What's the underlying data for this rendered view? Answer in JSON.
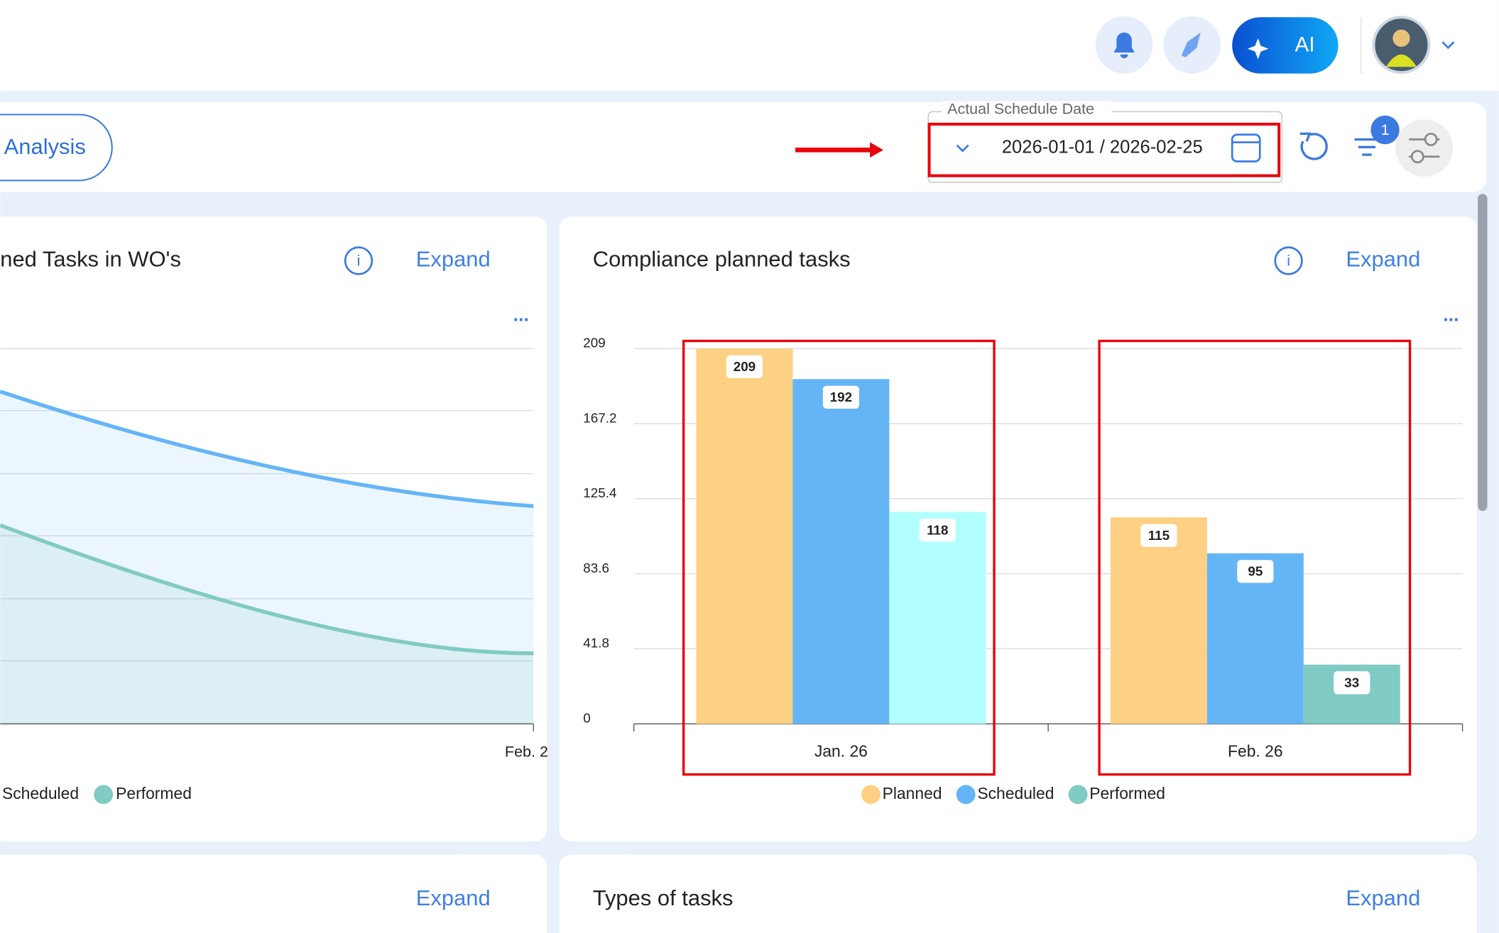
{
  "header": {
    "ai_button": "AI"
  },
  "toolbar": {
    "tab": "Analysis",
    "date_field": {
      "label": "Actual Schedule Date",
      "value": "2026-01-01 / 2026-02-25"
    },
    "filter_badge": "1"
  },
  "left_card": {
    "title": "ned Tasks in WO's",
    "expand": "Expand",
    "x_label": "Feb. 2",
    "legend": [
      "Scheduled",
      "Performed"
    ]
  },
  "compliance_card": {
    "expand": "Expand"
  },
  "chart_data": {
    "type": "bar",
    "title": "Compliance planned tasks",
    "categories": [
      "Jan. 26",
      "Feb. 26"
    ],
    "series": [
      {
        "name": "Planned",
        "color": "#fdd083",
        "values": [
          209,
          115
        ]
      },
      {
        "name": "Scheduled",
        "color": "#64b5f6",
        "values": [
          192,
          95
        ]
      },
      {
        "name": "Performed",
        "color": "#80cbc4",
        "colors": [
          "#b2ffff",
          "#80cbc4"
        ],
        "values": [
          118,
          33
        ]
      }
    ],
    "ylim": [
      0,
      209
    ],
    "yticks": [
      0,
      41.8,
      83.6,
      125.4,
      167.2,
      209
    ],
    "grid": true
  },
  "bottom_cards": [
    {
      "expand": "Expand"
    },
    {
      "title": "Types of tasks",
      "expand": "Expand"
    }
  ]
}
